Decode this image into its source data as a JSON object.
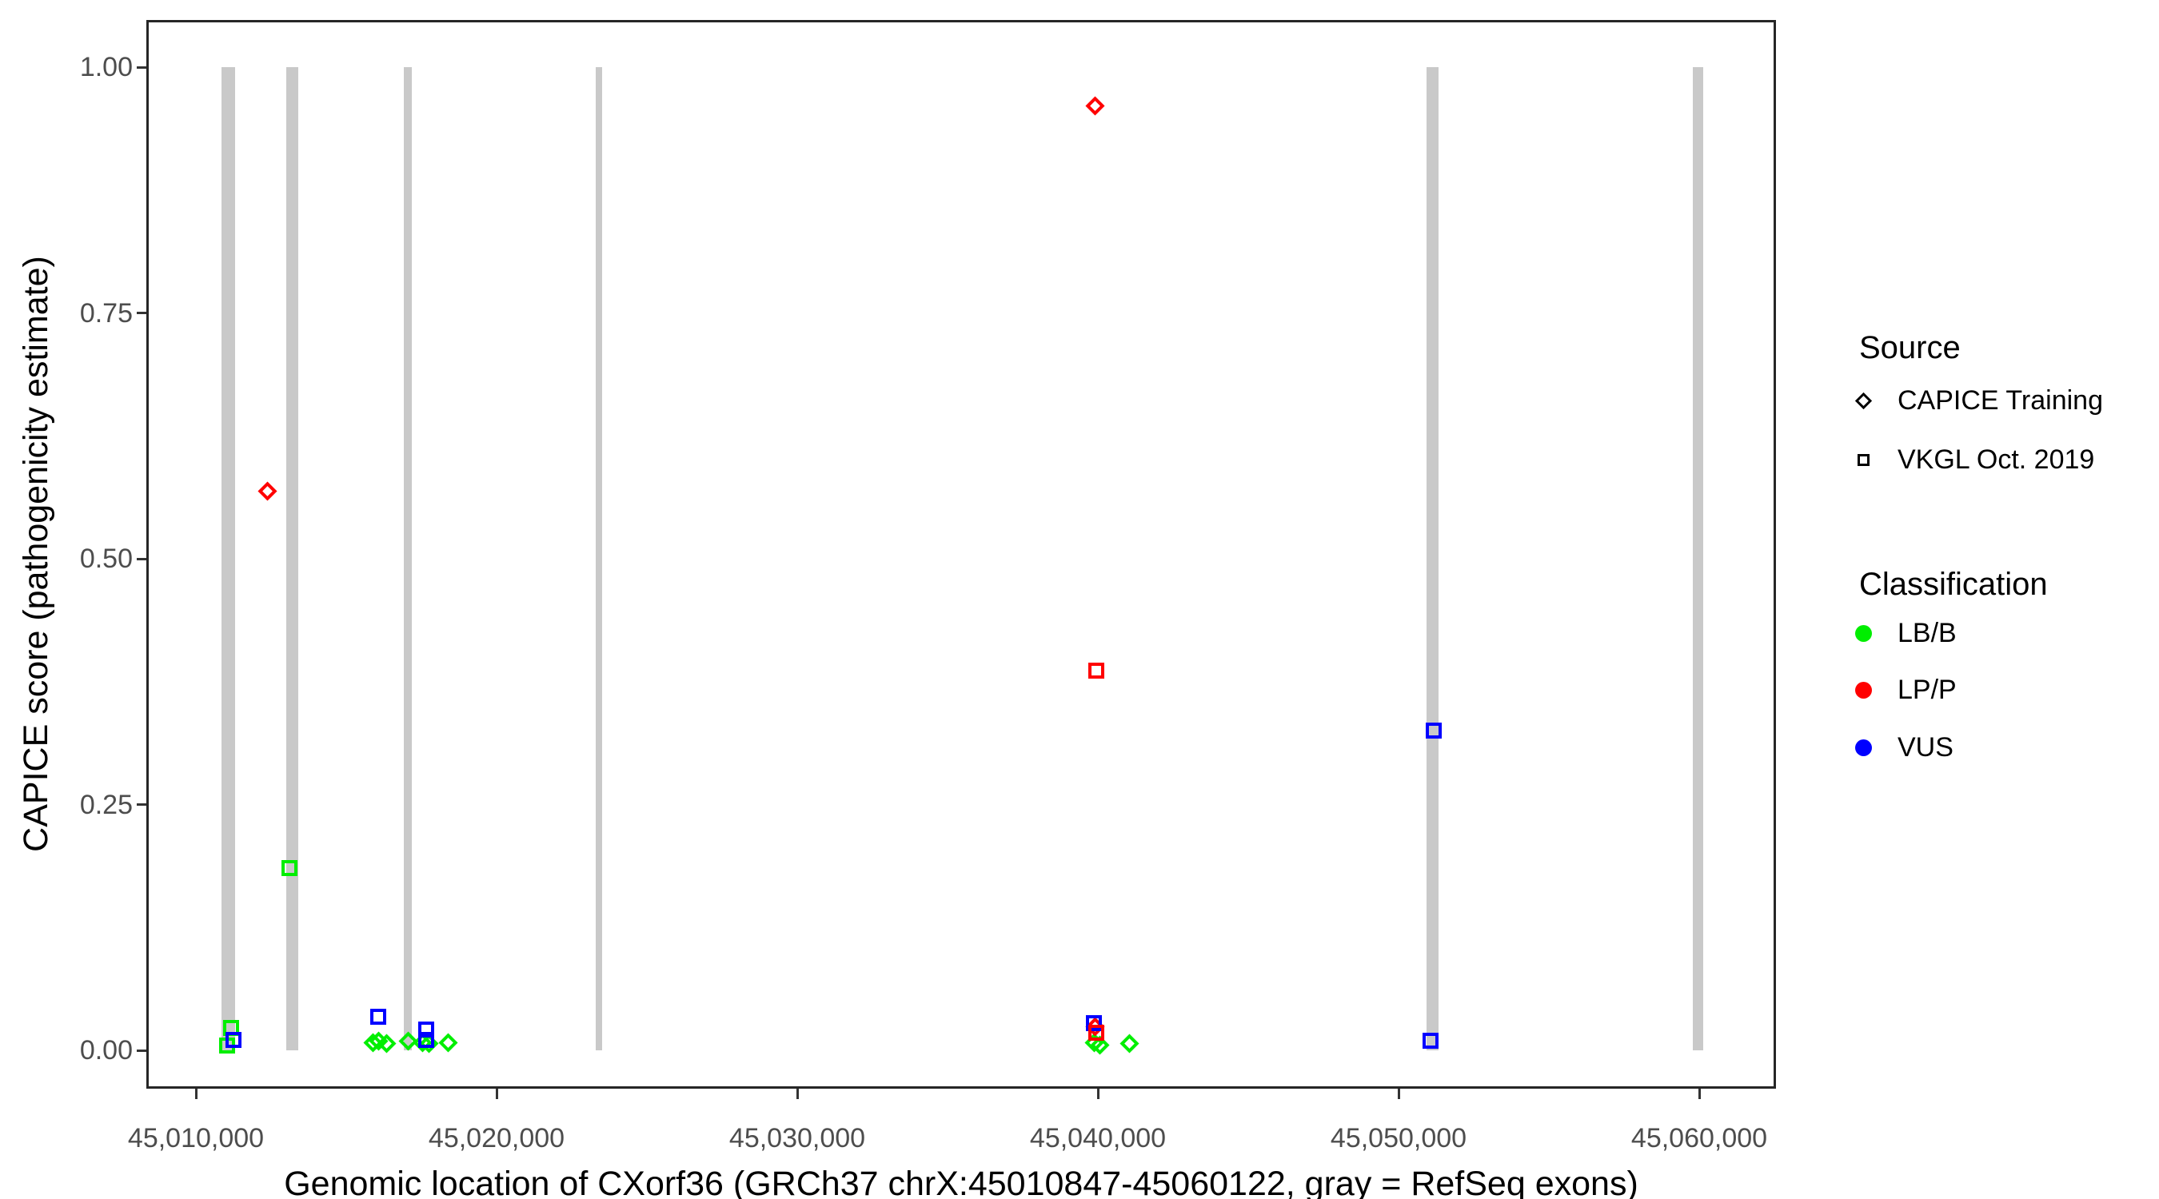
{
  "figure": {
    "background": "#FFFFFF"
  },
  "colors": {
    "exon_gray": "#C9C9C9",
    "lbb_green": "#00EE00",
    "lpp_red": "#FF0000",
    "vus_blue": "#0000FF",
    "axis_text": "#4D4D4D",
    "panel_border": "#262626",
    "legend_black": "#000000"
  },
  "legend": {
    "source": {
      "title": "Source",
      "items": [
        {
          "label": "CAPICE Training",
          "marker": "diamond"
        },
        {
          "label": "VKGL Oct. 2019",
          "marker": "square"
        }
      ]
    },
    "classification": {
      "title": "Classification",
      "items": [
        {
          "label": "LB/B",
          "color": "#00EE00"
        },
        {
          "label": "LP/P",
          "color": "#FF0000"
        },
        {
          "label": "VUS",
          "color": "#0000FF"
        }
      ]
    }
  },
  "chart_data": {
    "type": "scatter",
    "title": "",
    "xlabel": "Genomic location of CXorf36 (GRCh37 chrX:45010847-45060122, gray = RefSeq exons)",
    "ylabel": "CAPICE score (pathogenicity estimate)",
    "xlim": [
      45008351,
      45062553
    ],
    "ylim": [
      -0.039,
      1.048
    ],
    "grid": false,
    "legend_position": "right",
    "x_ticks": [
      {
        "value": 45010000,
        "label": "45,010,000"
      },
      {
        "value": 45020000,
        "label": "45,020,000"
      },
      {
        "value": 45030000,
        "label": "45,030,000"
      },
      {
        "value": 45040000,
        "label": "45,040,000"
      },
      {
        "value": 45050000,
        "label": "45,050,000"
      },
      {
        "value": 45060000,
        "label": "45,060,000"
      }
    ],
    "y_ticks": [
      {
        "value": 0.0,
        "label": "0.00"
      },
      {
        "value": 0.25,
        "label": "0.25"
      },
      {
        "value": 0.5,
        "label": "0.50"
      },
      {
        "value": 0.75,
        "label": "0.75"
      },
      {
        "value": 1.0,
        "label": "1.00"
      }
    ],
    "exons_note": "gray vertical bars = RefSeq exons, drawn from y=0 to y=1",
    "exons": [
      {
        "start": 45010847,
        "end": 45011290
      },
      {
        "start": 45013010,
        "end": 45013400
      },
      {
        "start": 45016920,
        "end": 45017190
      },
      {
        "start": 45023310,
        "end": 45023500
      },
      {
        "start": 45050930,
        "end": 45051330
      },
      {
        "start": 45059790,
        "end": 45060122
      }
    ],
    "points": [
      {
        "x": 45012390,
        "y": 0.569,
        "source": "CAPICE Training",
        "classification": "LP/P"
      },
      {
        "x": 45039920,
        "y": 0.961,
        "source": "CAPICE Training",
        "classification": "LP/P"
      },
      {
        "x": 45015880,
        "y": 0.008,
        "source": "CAPICE Training",
        "classification": "LB/B"
      },
      {
        "x": 45016090,
        "y": 0.009,
        "source": "CAPICE Training",
        "classification": "LB/B"
      },
      {
        "x": 45016330,
        "y": 0.007,
        "source": "CAPICE Training",
        "classification": "LB/B"
      },
      {
        "x": 45017050,
        "y": 0.009,
        "source": "CAPICE Training",
        "classification": "LB/B"
      },
      {
        "x": 45017530,
        "y": 0.008,
        "source": "CAPICE Training",
        "classification": "LB/B"
      },
      {
        "x": 45017740,
        "y": 0.007,
        "source": "CAPICE Training",
        "classification": "LB/B"
      },
      {
        "x": 45018380,
        "y": 0.008,
        "source": "CAPICE Training",
        "classification": "LB/B"
      },
      {
        "x": 45039870,
        "y": 0.008,
        "source": "CAPICE Training",
        "classification": "LB/B"
      },
      {
        "x": 45040070,
        "y": 0.005,
        "source": "CAPICE Training",
        "classification": "LB/B"
      },
      {
        "x": 45041060,
        "y": 0.007,
        "source": "CAPICE Training",
        "classification": "LB/B"
      },
      {
        "x": 45039900,
        "y": 0.024,
        "source": "CAPICE Training",
        "classification": "LP/P"
      },
      {
        "x": 45011170,
        "y": 0.023,
        "source": "VKGL Oct. 2019",
        "classification": "LB/B"
      },
      {
        "x": 45011030,
        "y": 0.005,
        "source": "VKGL Oct. 2019",
        "classification": "LB/B"
      },
      {
        "x": 45011240,
        "y": 0.011,
        "source": "VKGL Oct. 2019",
        "classification": "VUS"
      },
      {
        "x": 45013110,
        "y": 0.185,
        "source": "VKGL Oct. 2019",
        "classification": "LB/B"
      },
      {
        "x": 45016060,
        "y": 0.034,
        "source": "VKGL Oct. 2019",
        "classification": "VUS"
      },
      {
        "x": 45017670,
        "y": 0.021,
        "source": "VKGL Oct. 2019",
        "classification": "VUS"
      },
      {
        "x": 45017670,
        "y": 0.011,
        "source": "VKGL Oct. 2019",
        "classification": "VUS"
      },
      {
        "x": 45039950,
        "y": 0.386,
        "source": "VKGL Oct. 2019",
        "classification": "LP/P"
      },
      {
        "x": 45039880,
        "y": 0.028,
        "source": "VKGL Oct. 2019",
        "classification": "VUS"
      },
      {
        "x": 45039950,
        "y": 0.018,
        "source": "VKGL Oct. 2019",
        "classification": "LP/P"
      },
      {
        "x": 45051180,
        "y": 0.325,
        "source": "VKGL Oct. 2019",
        "classification": "VUS"
      },
      {
        "x": 45051060,
        "y": 0.01,
        "source": "VKGL Oct. 2019",
        "classification": "VUS"
      }
    ]
  }
}
